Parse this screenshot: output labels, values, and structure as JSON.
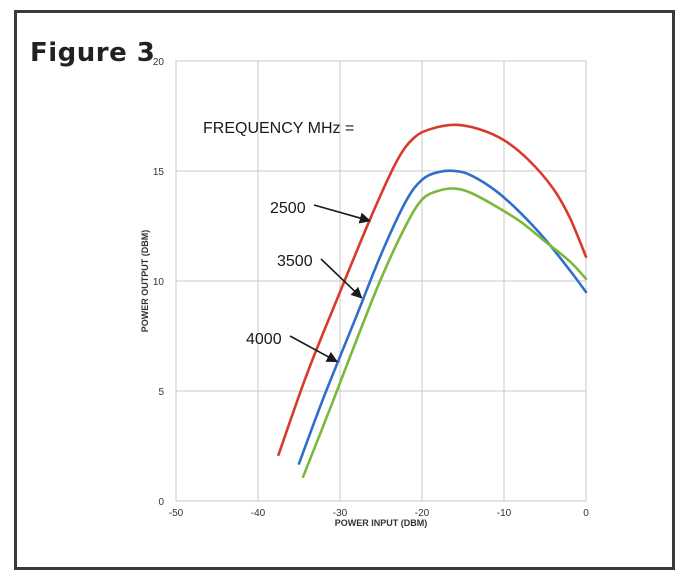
{
  "figure_label": "Figure 3",
  "chart_data": {
    "type": "line",
    "title": "",
    "xlabel": "POWER INPUT (DBM)",
    "ylabel": "POWER OUTPUT (DBM)",
    "xlim": [
      -50,
      0
    ],
    "ylim": [
      0,
      20
    ],
    "xticks": [
      -50,
      -40,
      -30,
      -20,
      -10,
      0
    ],
    "yticks": [
      0,
      5,
      10,
      15,
      20
    ],
    "grid": true,
    "legend_header": "FREQUENCY MHz =",
    "series": [
      {
        "name": "2500",
        "color": "#d83a2c",
        "x": [
          -37.5,
          -34,
          -30,
          -26,
          -23,
          -21,
          -19,
          -16,
          -13,
          -10,
          -7,
          -4,
          -2,
          0
        ],
        "y": [
          2.1,
          5.8,
          9.5,
          13.1,
          15.5,
          16.5,
          16.9,
          17.1,
          16.9,
          16.4,
          15.5,
          14.2,
          12.9,
          11.1
        ]
      },
      {
        "name": "3500",
        "color": "#2f6fc9",
        "x": [
          -35,
          -32,
          -28,
          -25,
          -22,
          -20,
          -18,
          -16,
          -14,
          -11,
          -8,
          -5,
          -2,
          0
        ],
        "y": [
          1.7,
          4.7,
          8.4,
          11.2,
          13.6,
          14.6,
          14.95,
          15.0,
          14.8,
          14.1,
          13.1,
          11.9,
          10.5,
          9.5
        ]
      },
      {
        "name": "4000",
        "color": "#7bb83b",
        "x": [
          -34.5,
          -31,
          -28,
          -25,
          -22,
          -20,
          -18,
          -16,
          -14,
          -11,
          -8,
          -5,
          -2,
          0
        ],
        "y": [
          1.1,
          4.4,
          7.3,
          10.1,
          12.5,
          13.7,
          14.1,
          14.2,
          14.0,
          13.4,
          12.7,
          11.8,
          10.9,
          10.1
        ]
      }
    ]
  }
}
